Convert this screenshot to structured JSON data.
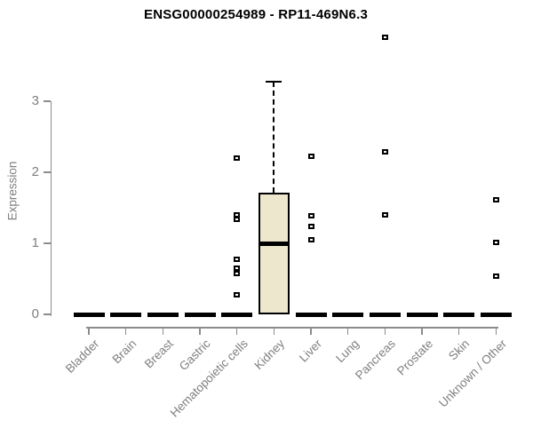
{
  "title": "ENSG00000254989 - RP11-469N6.3",
  "chart_data": {
    "type": "boxplot",
    "title": "ENSG00000254989 - RP11-469N6.3",
    "xlabel": "",
    "ylabel": "Expression",
    "ylim": [
      0,
      3.3
    ],
    "yticks": [
      0,
      1,
      2,
      3
    ],
    "grid": false,
    "legend": "none",
    "categories": [
      "Bladder",
      "Brain",
      "Breast",
      "Gastric",
      "Hematopoietic cells",
      "Kidney",
      "Liver",
      "Lung",
      "Pancreas",
      "Prostate",
      "Skin",
      "Unknown / Other"
    ],
    "series": [
      {
        "category": "Bladder",
        "low": 0,
        "q1": 0,
        "median": 0,
        "q3": 0,
        "high": 0,
        "outliers": []
      },
      {
        "category": "Brain",
        "low": 0,
        "q1": 0,
        "median": 0,
        "q3": 0,
        "high": 0,
        "outliers": []
      },
      {
        "category": "Breast",
        "low": 0,
        "q1": 0,
        "median": 0,
        "q3": 0,
        "high": 0,
        "outliers": []
      },
      {
        "category": "Gastric",
        "low": 0,
        "q1": 0,
        "median": 0,
        "q3": 0,
        "high": 0,
        "outliers": []
      },
      {
        "category": "Hematopoietic cells",
        "low": 0,
        "q1": 0,
        "median": 0,
        "q3": 0,
        "high": 0,
        "outliers": [
          2.2,
          1.4,
          1.34,
          0.77,
          0.65,
          0.57,
          0.27
        ]
      },
      {
        "category": "Kidney",
        "low": 0,
        "q1": 0,
        "median": 1.0,
        "q3": 1.71,
        "high": 3.28,
        "outliers": []
      },
      {
        "category": "Liver",
        "low": 0,
        "q1": 0,
        "median": 0,
        "q3": 0,
        "high": 0,
        "outliers": [
          2.22,
          1.39,
          1.24,
          1.05
        ]
      },
      {
        "category": "Lung",
        "low": 0,
        "q1": 0,
        "median": 0,
        "q3": 0,
        "high": 0,
        "outliers": []
      },
      {
        "category": "Pancreas",
        "low": 0,
        "q1": 0,
        "median": 0,
        "q3": 0,
        "high": 0,
        "outliers": [
          3.9,
          2.29,
          1.4
        ]
      },
      {
        "category": "Prostate",
        "low": 0,
        "q1": 0,
        "median": 0,
        "q3": 0,
        "high": 0,
        "outliers": []
      },
      {
        "category": "Skin",
        "low": 0,
        "q1": 0,
        "median": 0,
        "q3": 0,
        "high": 0,
        "outliers": []
      },
      {
        "category": "Unknown / Other",
        "low": 0,
        "q1": 0,
        "median": 0,
        "q3": 0,
        "high": 0,
        "outliers": [
          1.61,
          1.01,
          0.54
        ]
      }
    ],
    "style": {
      "box_fill": "#EDE8CD",
      "box_border": "#000000",
      "median_color": "#000000",
      "whisker_style": "dashed",
      "outlier_marker": "open-square",
      "axis_color": "#8C8C8C",
      "label_color": "#7F7F7F",
      "title_color": "#000000"
    }
  }
}
